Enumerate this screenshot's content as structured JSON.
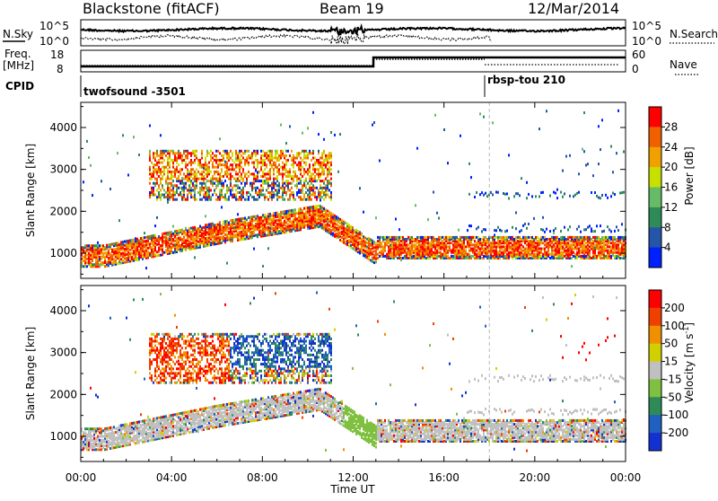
{
  "header": {
    "radar": "Blackstone (fitACF)",
    "beam": "Beam 19",
    "date": "12/Mar/2014"
  },
  "strip": {
    "nsky_label": "N.Sky",
    "nsearch_label": "N.Search",
    "noise_ticks": [
      "10^5",
      "10^0"
    ],
    "freq_label_line1": "Freq.",
    "freq_label_line2": "[MHz]",
    "freq_ticks": [
      "18",
      "8"
    ],
    "nave_ticks": [
      "60",
      "0"
    ],
    "nave_label": "Nave",
    "cpid_label": "CPID",
    "cpid_modes": [
      {
        "name": "twofsound -3501",
        "start_hour": 0,
        "end_hour": 18
      },
      {
        "name": "rbsp-tou 210",
        "start_hour": 18,
        "end_hour": 24
      }
    ]
  },
  "x_axis": {
    "label": "Time UT",
    "tick_labels": [
      "00:00",
      "04:00",
      "08:00",
      "12:00",
      "16:00",
      "20:00",
      "00:00"
    ],
    "tick_hours": [
      0,
      4,
      8,
      12,
      16,
      20,
      24
    ],
    "range_hours": [
      0,
      24
    ]
  },
  "colors": {
    "power": [
      "#0020ff",
      "#2555a8",
      "#2e8b57",
      "#66bb66",
      "#c8e000",
      "#f0a000",
      "#f06000",
      "#ff0000"
    ],
    "velocity": [
      "#1530d0",
      "#2060c0",
      "#2e8b57",
      "#80c040",
      "#c0c0c0",
      "#d0d000",
      "#f09000",
      "#f04000",
      "#ff0000"
    ]
  },
  "chart_data": [
    {
      "type": "heatmap",
      "name": "power",
      "ylabel": "Slant Range [km]",
      "ylim": [
        400,
        4600
      ],
      "y_ticks": [
        1000,
        2000,
        3000,
        4000
      ],
      "colorbar": {
        "label": "Power [dB]",
        "ticks": [
          "28",
          "24",
          "20",
          "16",
          "12",
          "8",
          "4"
        ],
        "range": [
          0,
          32
        ]
      },
      "features": [
        {
          "band": "near-range",
          "hours": [
            0,
            11.5
          ],
          "range_km": [
            800,
            1200
          ]
        },
        {
          "band": "far-range",
          "hours": [
            3,
            11
          ],
          "range_km": [
            2300,
            3400
          ]
        },
        {
          "band": "post-noon",
          "hours": [
            13,
            24
          ],
          "range_km": [
            900,
            1300
          ]
        }
      ]
    },
    {
      "type": "heatmap",
      "name": "velocity",
      "ylabel": "Slant Range [km]",
      "ylim": [
        400,
        4600
      ],
      "y_ticks": [
        1000,
        2000,
        3000,
        4000
      ],
      "colorbar": {
        "label": "Velocity [m s^-1]",
        "ticks": [
          "200",
          "100",
          "50",
          "15",
          "-15",
          "-50",
          "-100",
          "-200"
        ],
        "range": [
          -250,
          250
        ]
      }
    }
  ]
}
